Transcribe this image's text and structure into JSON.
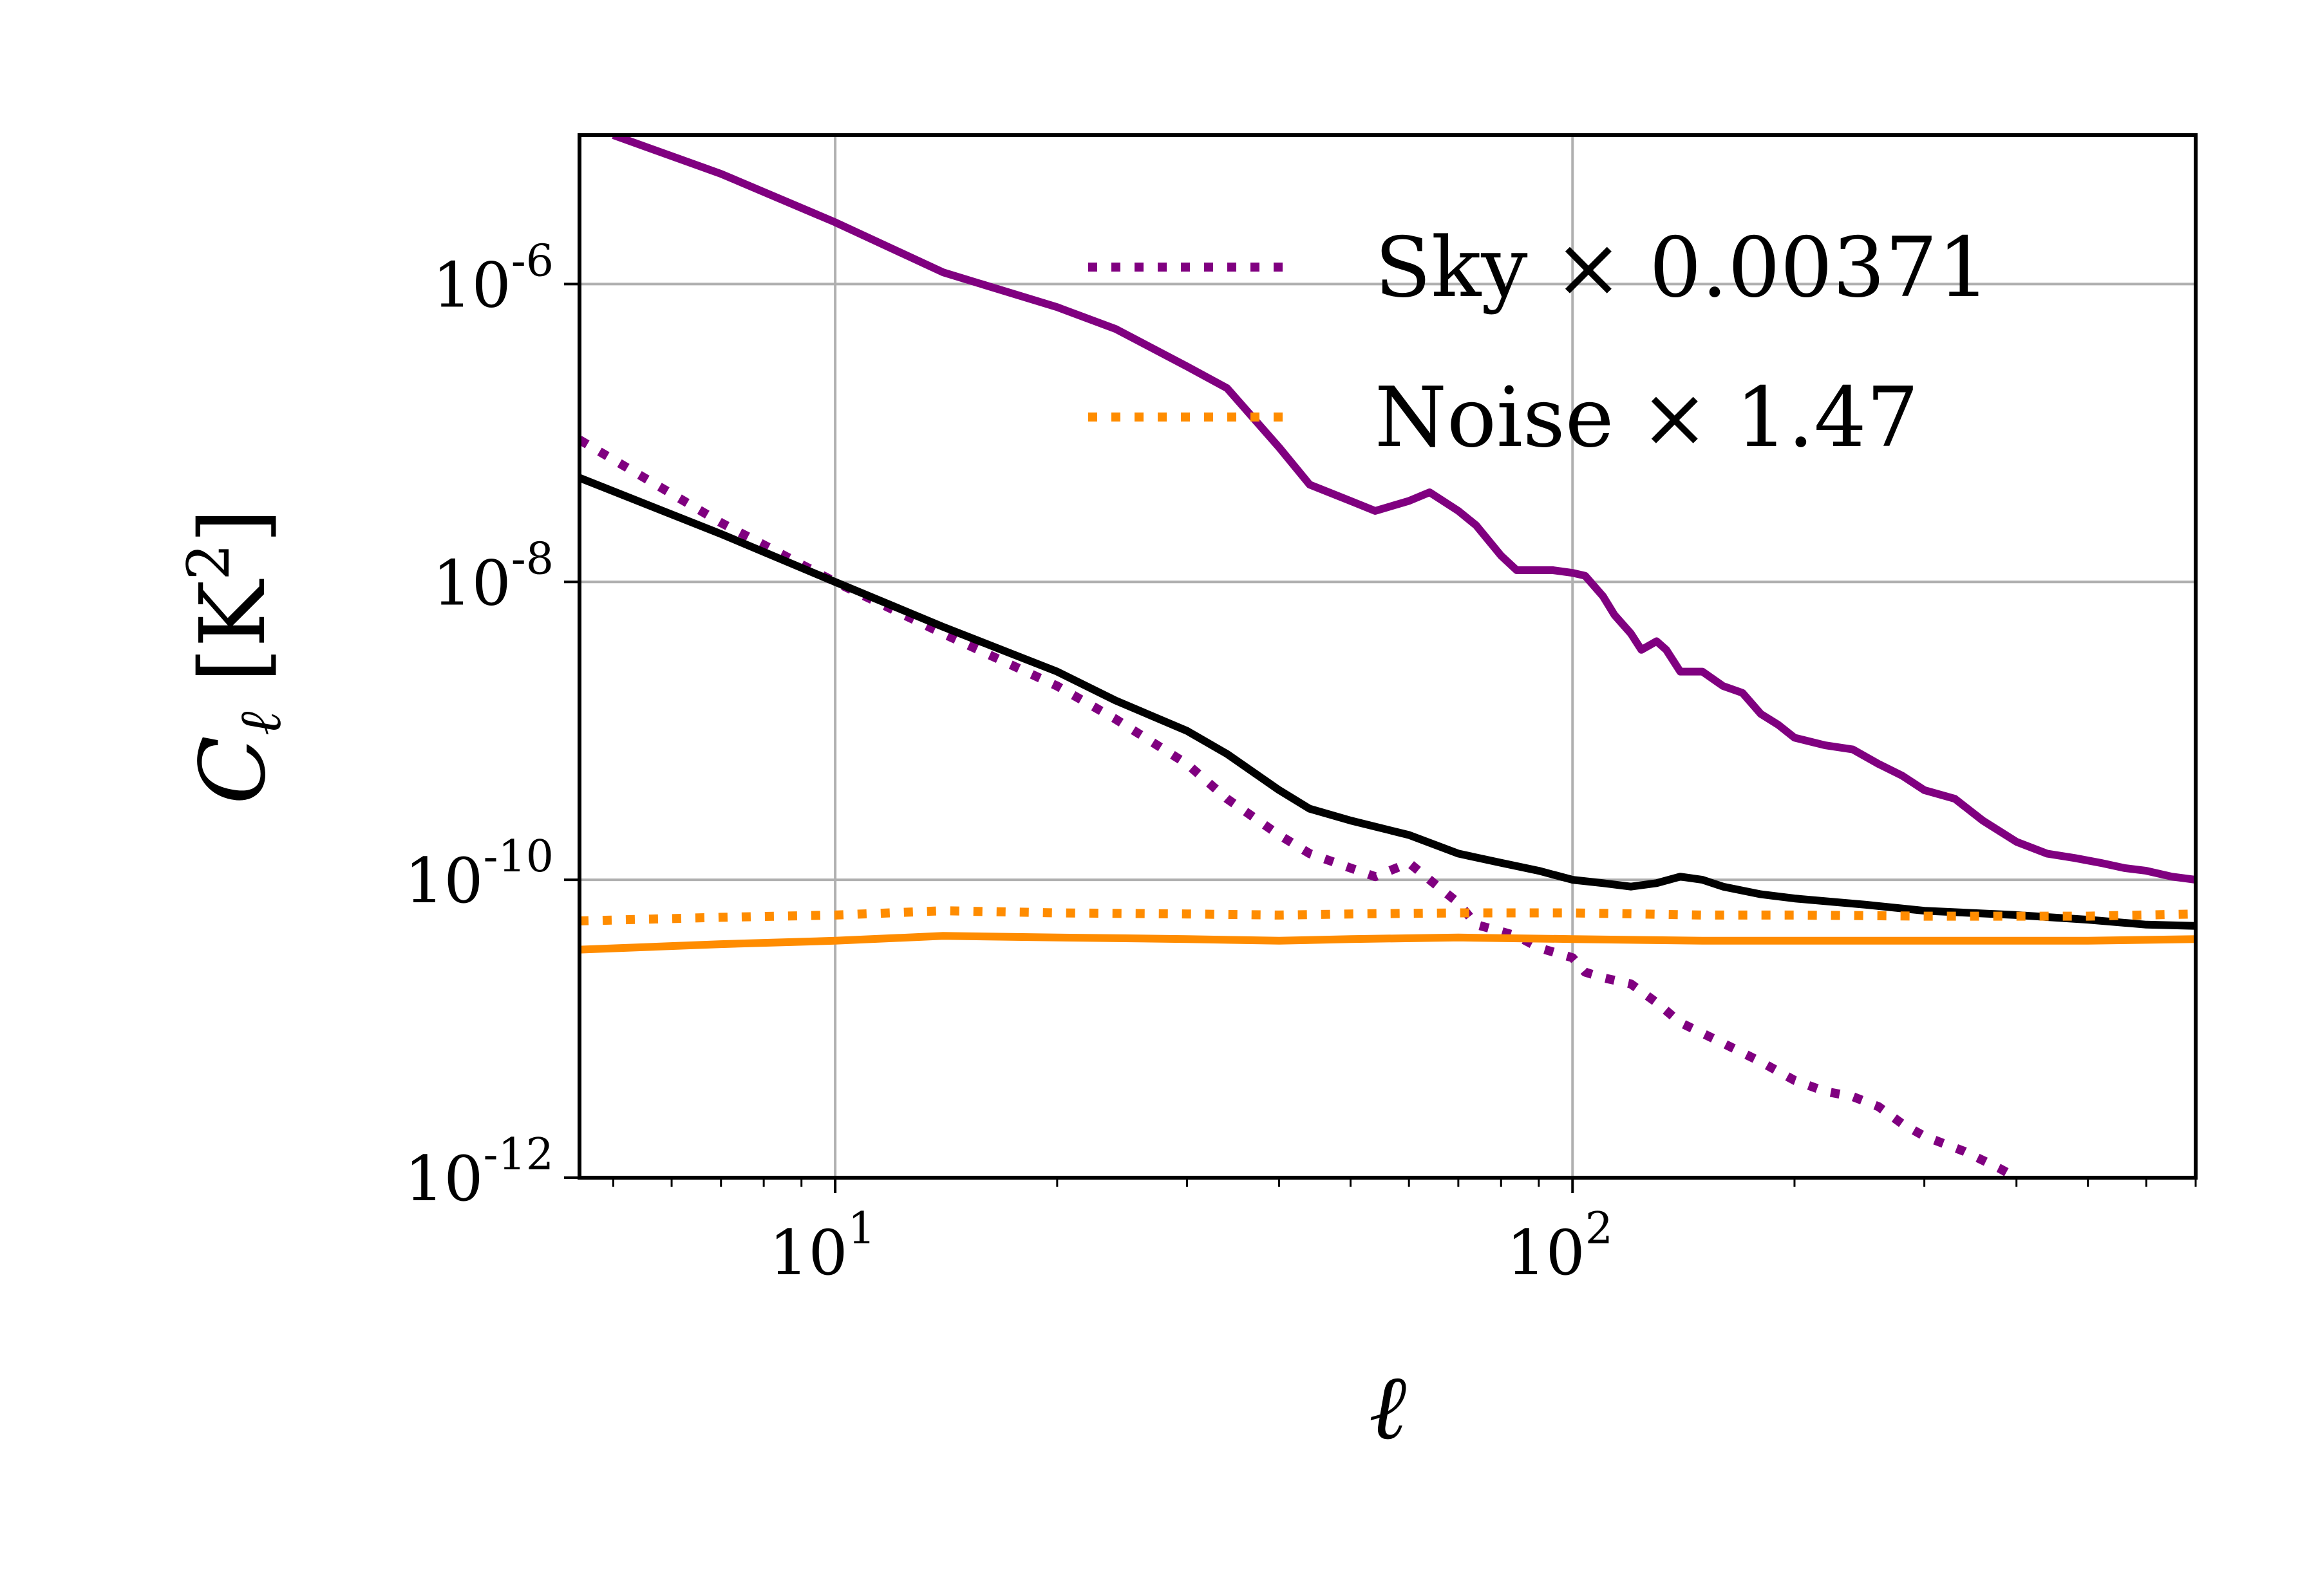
{
  "chart_data": {
    "type": "line",
    "title": "",
    "xlabel": "ℓ",
    "ylabel_symbol": "C",
    "ylabel_subscript": "ℓ",
    "ylabel_unit": "[K",
    "ylabel_unit_exp": "2",
    "ylabel_unit_close": "]",
    "xscale": "log",
    "yscale": "log",
    "xlim": [
      4.5,
      700
    ],
    "ylim": [
      1e-12,
      1e-05
    ],
    "grid": true,
    "legend_position": "top-right",
    "x_ticks": [
      {
        "value": 10,
        "base": "10",
        "exp": "1"
      },
      {
        "value": 100,
        "base": "10",
        "exp": "2"
      }
    ],
    "y_ticks": [
      {
        "value": 1e-06,
        "base": "10",
        "exp": "-6"
      },
      {
        "value": 1e-08,
        "base": "10",
        "exp": "-8"
      },
      {
        "value": 1e-10,
        "base": "10",
        "exp": "-10"
      },
      {
        "value": 1e-12,
        "base": "10",
        "exp": "-12"
      }
    ],
    "colors": {
      "sky": "#800080",
      "noise": "#ff8c00",
      "total": "#000000",
      "grid": "#b0b0b0"
    },
    "legend": [
      {
        "label": "Sky × 0.00371",
        "series": "sky-dotted"
      },
      {
        "label": "Noise × 1.47",
        "series": "noise-dotted"
      }
    ],
    "series": [
      {
        "name": "sky-solid",
        "color": "#800080",
        "style": "solid",
        "x": [
          5,
          7,
          10,
          14,
          20,
          24,
          30,
          34,
          40,
          44,
          50,
          54,
          60,
          64,
          70,
          74,
          80,
          84,
          90,
          94,
          100,
          104,
          110,
          114,
          120,
          124,
          130,
          134,
          140,
          150,
          160,
          170,
          180,
          190,
          200,
          220,
          240,
          260,
          280,
          300,
          330,
          360,
          400,
          440,
          480,
          520,
          560,
          600,
          650,
          700
        ],
        "y": [
          1e-05,
          5.5e-06,
          2.6e-06,
          1.2e-06,
          7e-07,
          5e-07,
          2.8e-07,
          2e-07,
          8e-08,
          4.5e-08,
          3.5e-08,
          3e-08,
          3.5e-08,
          4e-08,
          3e-08,
          2.4e-08,
          1.5e-08,
          1.2e-08,
          1.2e-08,
          1.2e-08,
          1.15e-08,
          1.1e-08,
          8e-09,
          6e-09,
          4.5e-09,
          3.5e-09,
          4e-09,
          3.5e-09,
          2.5e-09,
          2.5e-09,
          2e-09,
          1.8e-09,
          1.3e-09,
          1.1e-09,
          9e-10,
          8e-10,
          7.5e-10,
          6e-10,
          5e-10,
          4e-10,
          3.5e-10,
          2.5e-10,
          1.8e-10,
          1.5e-10,
          1.4e-10,
          1.3e-10,
          1.2e-10,
          1.15e-10,
          1.05e-10,
          1e-10
        ]
      },
      {
        "name": "sky-dotted",
        "color": "#800080",
        "style": "dotted",
        "x": [
          4.5,
          7,
          10,
          14,
          20,
          24,
          30,
          34,
          40,
          44,
          50,
          54,
          60,
          64,
          70,
          74,
          80,
          84,
          90,
          100,
          104,
          110,
          120,
          130,
          140,
          160,
          180,
          200,
          220,
          240,
          260,
          280,
          300,
          340,
          380,
          400
        ],
        "y": [
          9e-08,
          2.5e-08,
          1e-08,
          4.5e-09,
          2e-09,
          1.2e-09,
          6e-10,
          3.5e-10,
          2e-10,
          1.5e-10,
          1.2e-10,
          1.05e-10,
          1.3e-10,
          1e-10,
          7e-11,
          5e-11,
          4.5e-11,
          4.2e-11,
          3.5e-11,
          3e-11,
          2.4e-11,
          2.2e-11,
          2e-11,
          1.5e-11,
          1.1e-11,
          8e-12,
          6e-12,
          4.5e-12,
          3.8e-12,
          3.5e-12,
          3e-12,
          2.3e-12,
          1.9e-12,
          1.5e-12,
          1.15e-12,
          1e-12
        ]
      },
      {
        "name": "total-black",
        "color": "#000000",
        "style": "solid",
        "x": [
          4.5,
          7,
          10,
          14,
          20,
          24,
          30,
          34,
          40,
          44,
          50,
          60,
          70,
          80,
          90,
          100,
          110,
          120,
          130,
          140,
          150,
          160,
          180,
          200,
          250,
          300,
          400,
          500,
          600,
          700
        ],
        "y": [
          5e-08,
          2.1e-08,
          1e-08,
          5e-09,
          2.5e-09,
          1.6e-09,
          1e-09,
          7e-10,
          4e-10,
          3e-10,
          2.5e-10,
          2e-10,
          1.5e-10,
          1.3e-10,
          1.15e-10,
          1e-10,
          9.5e-11,
          9e-11,
          9.5e-11,
          1.05e-10,
          1e-10,
          9e-11,
          8e-11,
          7.5e-11,
          6.8e-11,
          6.2e-11,
          5.8e-11,
          5.4e-11,
          5e-11,
          4.9e-11
        ]
      },
      {
        "name": "noise-dotted",
        "color": "#ff8c00",
        "style": "dotted",
        "x": [
          4.5,
          7,
          10,
          14,
          20,
          30,
          40,
          50,
          70,
          100,
          150,
          200,
          300,
          400,
          500,
          700
        ],
        "y": [
          5.3e-11,
          5.6e-11,
          5.8e-11,
          6.2e-11,
          6e-11,
          5.9e-11,
          5.8e-11,
          5.9e-11,
          6e-11,
          6e-11,
          5.8e-11,
          5.8e-11,
          5.7e-11,
          5.7e-11,
          5.7e-11,
          5.9e-11
        ]
      },
      {
        "name": "noise-solid",
        "color": "#ff8c00",
        "style": "solid",
        "x": [
          4.5,
          7,
          10,
          14,
          20,
          30,
          40,
          50,
          70,
          100,
          150,
          200,
          300,
          400,
          500,
          700
        ],
        "y": [
          3.4e-11,
          3.7e-11,
          3.9e-11,
          4.2e-11,
          4.1e-11,
          4e-11,
          3.9e-11,
          4e-11,
          4.1e-11,
          4e-11,
          3.9e-11,
          3.9e-11,
          3.9e-11,
          3.9e-11,
          3.9e-11,
          4e-11
        ]
      }
    ]
  }
}
